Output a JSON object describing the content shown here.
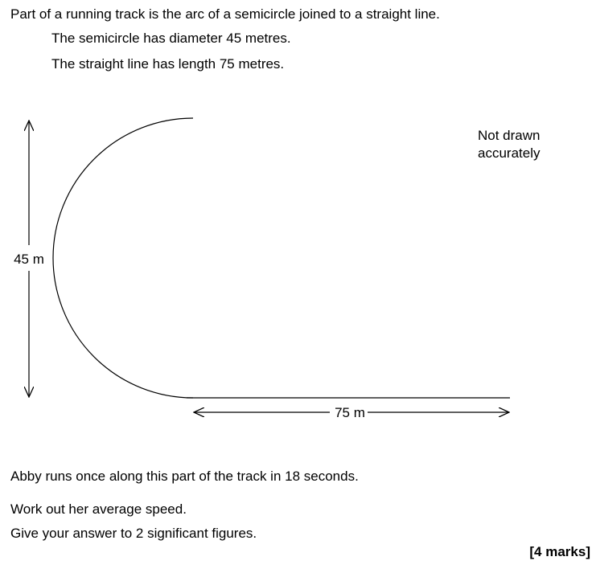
{
  "intro": "Part of a running track is the arc of a semicircle joined to a straight line.",
  "facts": [
    "The semicircle has diameter 45 metres.",
    "The straight line has length 75 metres."
  ],
  "diagram": {
    "note_line1": "Not drawn",
    "note_line2": "accurately",
    "diameter_label": "45 m",
    "straight_label": "75 m",
    "stroke_color": "#000000"
  },
  "question": {
    "statement": "Abby runs once along this part of the track in 18 seconds.",
    "instruction": "Work out her average speed.",
    "precision": "Give your answer to 2 significant figures.",
    "marks": "[4 marks]"
  }
}
